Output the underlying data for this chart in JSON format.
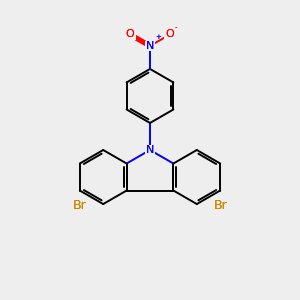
{
  "bg_color": "#eeeeee",
  "bond_color": "#000000",
  "N_color": "#0000ff",
  "O_color": "#ff0000",
  "Br_color": "#cc8800",
  "figsize": [
    3.0,
    3.0
  ],
  "dpi": 100,
  "N_label": "N",
  "Br_label": "Br",
  "NO2_N_label": "N",
  "O1_label": "O",
  "O2_label": "O",
  "plus_label": "+",
  "minus_label": "-"
}
